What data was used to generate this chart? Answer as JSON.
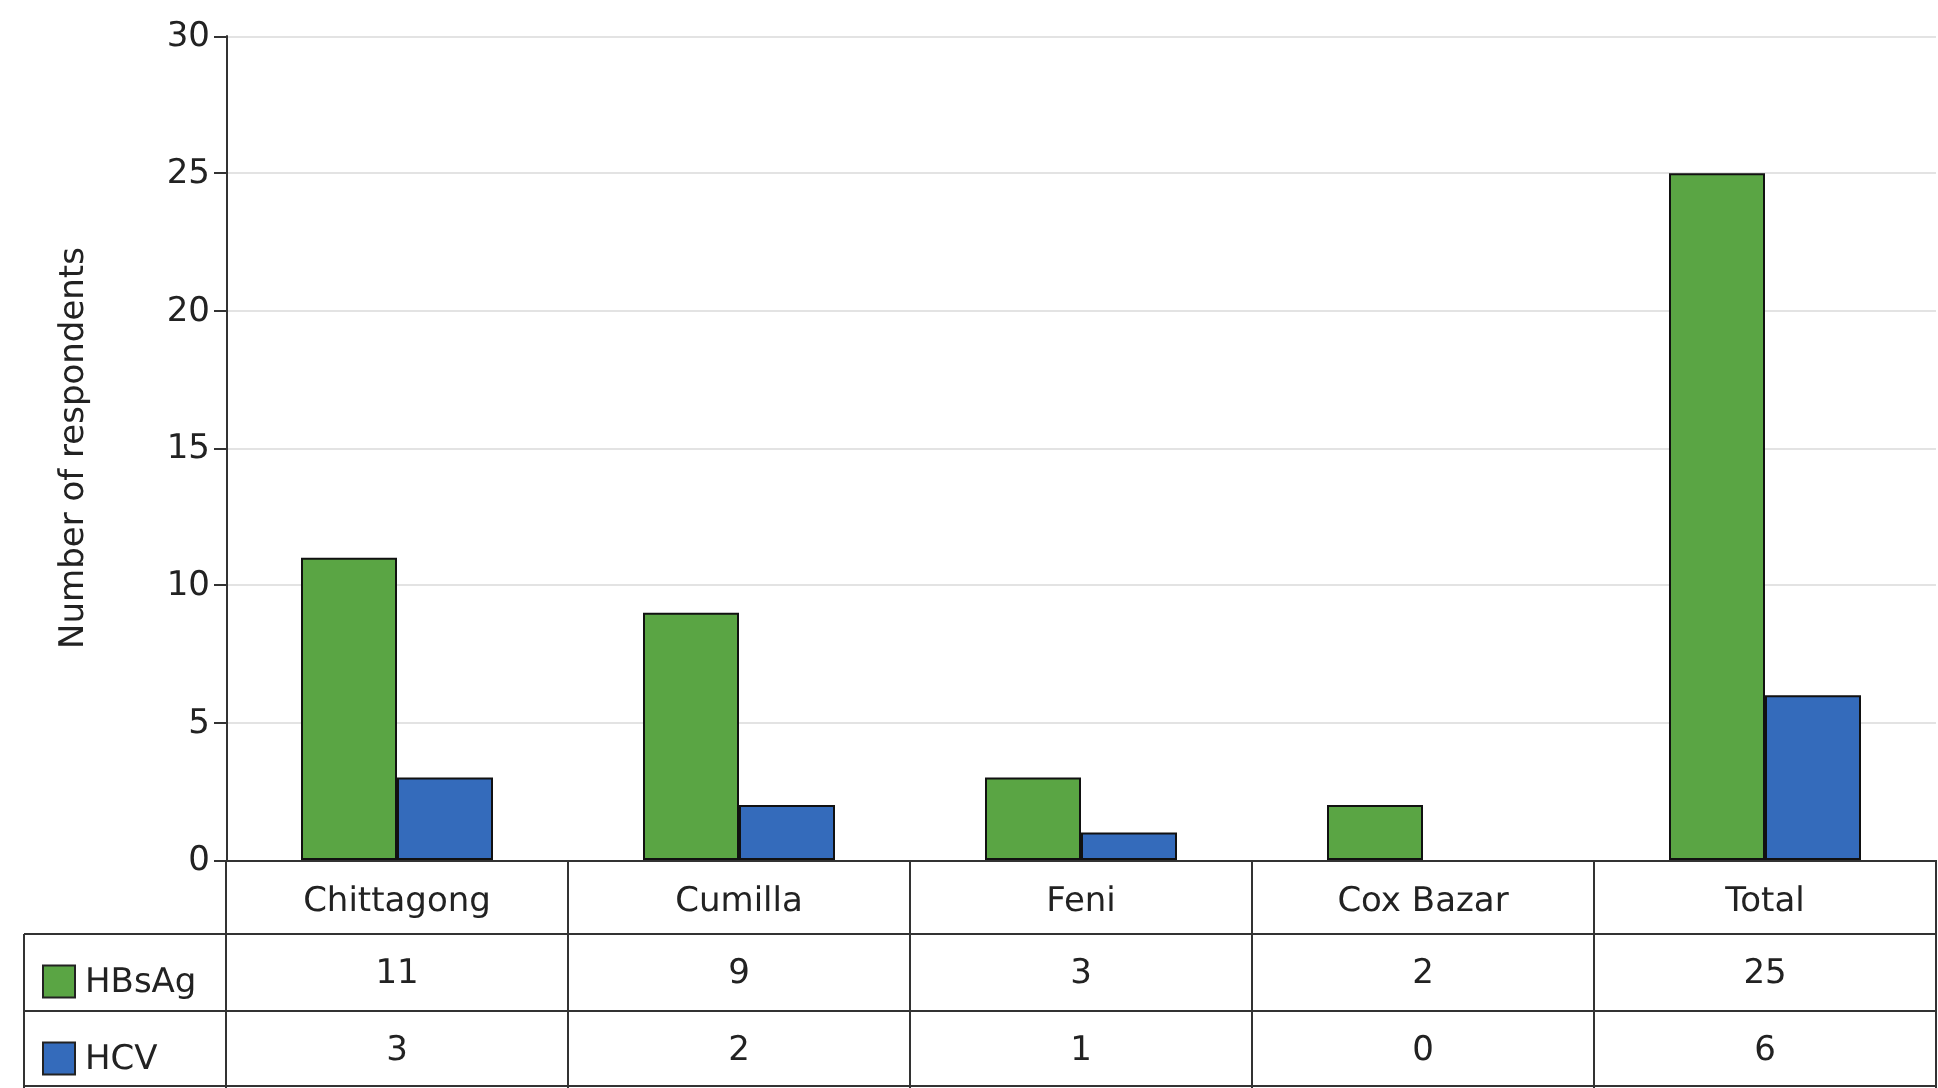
{
  "chart_data": {
    "type": "bar",
    "ylabel": "Number of respondents",
    "categories": [
      "Chittagong",
      "Cumilla",
      "Feni",
      "Cox Bazar",
      "Total"
    ],
    "series": [
      {
        "name": "HBsAg",
        "color": "#5aa544",
        "values": [
          11,
          9,
          3,
          2,
          25
        ]
      },
      {
        "name": "HCV",
        "color": "#346bbb",
        "values": [
          3,
          2,
          1,
          0,
          6
        ]
      }
    ],
    "ylim": [
      0,
      30
    ],
    "yticks": [
      0,
      5,
      10,
      15,
      20,
      25,
      30
    ],
    "grid": "y",
    "legend": "bottom",
    "data_labels": true
  }
}
